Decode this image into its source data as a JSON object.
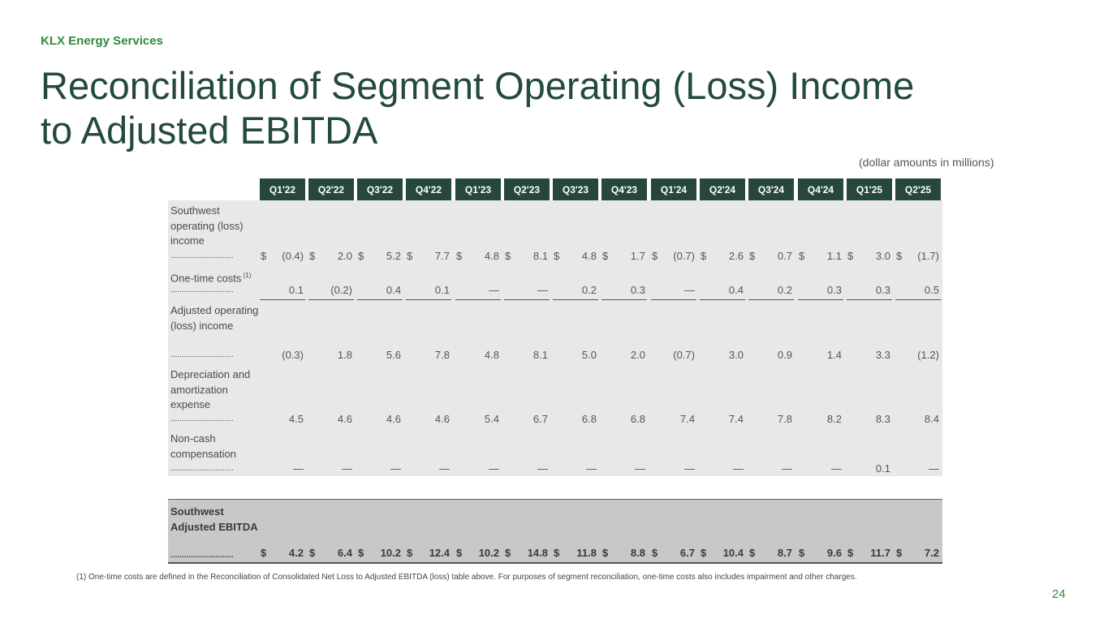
{
  "header": {
    "company": "KLX Energy Services",
    "title_line1": "Reconciliation of Segment Operating (Loss) Income",
    "title_line2": "to Adjusted EBITDA",
    "units_note": "(dollar amounts in millions)"
  },
  "table": {
    "columns": [
      "Q1'22",
      "Q2'22",
      "Q3'22",
      "Q4'22",
      "Q1'23",
      "Q2'23",
      "Q3'23",
      "Q4'23",
      "Q1'24",
      "Q2'24",
      "Q3'24",
      "Q4'24",
      "Q1'25",
      "Q2'25"
    ],
    "leader": "............................",
    "rows": [
      {
        "label": "Southwest operating (loss) income",
        "dollar": "$",
        "values": [
          "(0.4)",
          "2.0",
          "5.2",
          "7.7",
          "4.8",
          "8.1",
          "4.8",
          "1.7",
          "(0.7)",
          "2.6",
          "0.7",
          "1.1",
          "3.0",
          "(1.7)"
        ]
      },
      {
        "label": "One-time costs",
        "sup": "(1)",
        "dollar": "",
        "values": [
          "0.1",
          "(0.2)",
          "0.4",
          "0.1",
          "—",
          "—",
          "0.2",
          "0.3",
          "—",
          "0.4",
          "0.2",
          "0.3",
          "0.3",
          "0.5"
        ]
      },
      {
        "label": "Adjusted operating (loss) income",
        "dollar": "",
        "values": [
          "(0.3)",
          "1.8",
          "5.6",
          "7.8",
          "4.8",
          "8.1",
          "5.0",
          "2.0",
          "(0.7)",
          "3.0",
          "0.9",
          "1.4",
          "3.3",
          "(1.2)"
        ]
      },
      {
        "label": "Depreciation and amortization expense",
        "dollar": "",
        "values": [
          "4.5",
          "4.6",
          "4.6",
          "4.6",
          "5.4",
          "6.7",
          "6.8",
          "6.8",
          "7.4",
          "7.4",
          "7.8",
          "8.2",
          "8.3",
          "8.4"
        ]
      },
      {
        "label": "Non-cash compensation",
        "dollar": "",
        "values": [
          "—",
          "—",
          "—",
          "—",
          "—",
          "—",
          "—",
          "—",
          "—",
          "—",
          "—",
          "—",
          "0.1",
          "—"
        ]
      }
    ],
    "total": {
      "label": "Southwest Adjusted EBITDA",
      "dollar": "$",
      "values": [
        "4.2",
        "6.4",
        "10.2",
        "12.4",
        "10.2",
        "14.8",
        "11.8",
        "8.8",
        "6.7",
        "10.4",
        "8.7",
        "9.6",
        "11.7",
        "7.2"
      ]
    }
  },
  "footnote": "(1) One-time costs are defined in the Reconciliation of Consolidated Net Loss to Adjusted EBITDA (loss) table above. For purposes of segment reconciliation, one-time costs also includes impairment and other charges.",
  "page_number": "24",
  "colors": {
    "accent_green": "#2e8b3e",
    "title_green": "#244a3d",
    "header_fill": "#26473d",
    "panel_gray": "#e8e8e8",
    "total_gray": "#c8c8c8"
  }
}
